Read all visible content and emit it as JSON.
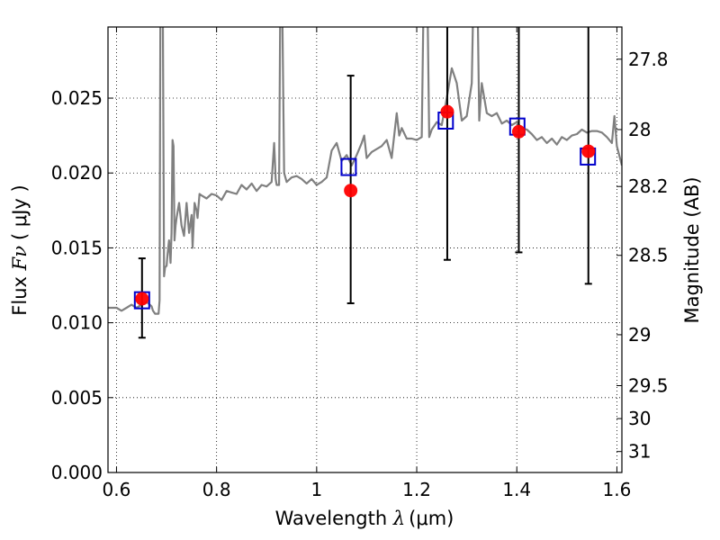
{
  "chart_data": {
    "type": "line",
    "xlabel_prefix": "Wavelength ",
    "xlabel_symbol": "λ",
    "xlabel_units": "(μm)",
    "ylabel_prefix": "Flux ",
    "ylabel_symbol": "Fν",
    "ylabel_units": "( μJy )",
    "y2label": "Magnitude (AB)",
    "xlim": [
      0.583,
      1.61
    ],
    "ylim": [
      0,
      0.02975
    ],
    "grid": true,
    "x_ticks": [
      {
        "value": 0.6,
        "label": "0.6"
      },
      {
        "value": 0.8,
        "label": "0.8"
      },
      {
        "value": 1.0,
        "label": "1"
      },
      {
        "value": 1.2,
        "label": "1.2"
      },
      {
        "value": 1.4,
        "label": "1.4"
      },
      {
        "value": 1.6,
        "label": "1.6"
      }
    ],
    "y_ticks": [
      {
        "value": 0.0,
        "label": "0.000"
      },
      {
        "value": 0.005,
        "label": "0.005"
      },
      {
        "value": 0.01,
        "label": "0.010"
      },
      {
        "value": 0.015,
        "label": "0.015"
      },
      {
        "value": 0.02,
        "label": "0.020"
      },
      {
        "value": 0.025,
        "label": "0.025"
      }
    ],
    "y2_ticks": [
      {
        "flux": 0.0276,
        "label": "27.8"
      },
      {
        "flux": 0.0229,
        "label": "28"
      },
      {
        "flux": 0.0191,
        "label": "28.2"
      },
      {
        "flux": 0.0145,
        "label": "28.5"
      },
      {
        "flux": 0.0092,
        "label": "29"
      },
      {
        "flux": 0.0058,
        "label": "29.5"
      },
      {
        "flux": 0.0036,
        "label": "30"
      },
      {
        "flux": 0.0014,
        "label": "31"
      }
    ],
    "spectrum": {
      "color": "#808080",
      "x": [
        0.583,
        0.6,
        0.61,
        0.62,
        0.63,
        0.64,
        0.65,
        0.66,
        0.67,
        0.673,
        0.677,
        0.68,
        0.684,
        0.686,
        0.688,
        0.692,
        0.695,
        0.697,
        0.7,
        0.702,
        0.705,
        0.708,
        0.71,
        0.712,
        0.714,
        0.716,
        0.718,
        0.72,
        0.725,
        0.73,
        0.735,
        0.74,
        0.745,
        0.75,
        0.752,
        0.756,
        0.76,
        0.762,
        0.766,
        0.77,
        0.78,
        0.79,
        0.8,
        0.81,
        0.82,
        0.83,
        0.84,
        0.85,
        0.86,
        0.87,
        0.88,
        0.89,
        0.9,
        0.91,
        0.915,
        0.918,
        0.92,
        0.925,
        0.928,
        0.93,
        0.935,
        0.94,
        0.95,
        0.96,
        0.97,
        0.98,
        0.99,
        1.0,
        1.01,
        1.02,
        1.03,
        1.04,
        1.05,
        1.06,
        1.07,
        1.08,
        1.09,
        1.095,
        1.1,
        1.11,
        1.12,
        1.13,
        1.14,
        1.15,
        1.16,
        1.165,
        1.17,
        1.18,
        1.19,
        1.2,
        1.21,
        1.215,
        1.22,
        1.225,
        1.23,
        1.24,
        1.25,
        1.26,
        1.27,
        1.28,
        1.29,
        1.3,
        1.31,
        1.315,
        1.32,
        1.325,
        1.33,
        1.34,
        1.35,
        1.36,
        1.37,
        1.38,
        1.39,
        1.4,
        1.41,
        1.42,
        1.43,
        1.44,
        1.45,
        1.46,
        1.47,
        1.48,
        1.49,
        1.5,
        1.51,
        1.52,
        1.53,
        1.54,
        1.55,
        1.56,
        1.57,
        1.58,
        1.59,
        1.595,
        1.6,
        1.61
      ],
      "y": [
        0.011,
        0.011,
        0.0108,
        0.011,
        0.0112,
        0.011,
        0.0112,
        0.0114,
        0.0111,
        0.0108,
        0.0106,
        0.0106,
        0.0106,
        0.0115,
        0.035,
        0.035,
        0.0131,
        0.0137,
        0.0138,
        0.0146,
        0.0155,
        0.014,
        0.016,
        0.0222,
        0.0218,
        0.0155,
        0.0165,
        0.017,
        0.018,
        0.0165,
        0.0158,
        0.018,
        0.016,
        0.0172,
        0.015,
        0.018,
        0.0175,
        0.017,
        0.0186,
        0.0185,
        0.0183,
        0.0186,
        0.0185,
        0.0182,
        0.0188,
        0.0187,
        0.0186,
        0.0192,
        0.0189,
        0.0193,
        0.0188,
        0.0192,
        0.0191,
        0.0194,
        0.022,
        0.0196,
        0.0192,
        0.0192,
        0.035,
        0.035,
        0.02,
        0.0194,
        0.0197,
        0.0198,
        0.0196,
        0.0193,
        0.0196,
        0.0192,
        0.0194,
        0.0197,
        0.0215,
        0.022,
        0.0208,
        0.0212,
        0.0205,
        0.0212,
        0.022,
        0.0225,
        0.021,
        0.0214,
        0.0216,
        0.0218,
        0.0222,
        0.021,
        0.024,
        0.0225,
        0.023,
        0.0223,
        0.0223,
        0.0222,
        0.0224,
        0.035,
        0.035,
        0.0224,
        0.0229,
        0.0234,
        0.0232,
        0.025,
        0.027,
        0.026,
        0.0235,
        0.0238,
        0.026,
        0.035,
        0.035,
        0.0235,
        0.026,
        0.024,
        0.0238,
        0.024,
        0.0233,
        0.0235,
        0.0232,
        0.0234,
        0.023,
        0.0229,
        0.0226,
        0.0222,
        0.0224,
        0.022,
        0.0223,
        0.0219,
        0.0224,
        0.0222,
        0.0225,
        0.0226,
        0.0229,
        0.0227,
        0.0228,
        0.0228,
        0.0227,
        0.0224,
        0.022,
        0.0238,
        0.0218,
        0.0205
      ]
    },
    "observed": {
      "color": "#ff0000",
      "points": [
        {
          "x": 0.651,
          "y": 0.0116,
          "yerr_low": 0.009,
          "yerr_high": 0.0143
        },
        {
          "x": 1.068,
          "y": 0.01883,
          "yerr_low": 0.0113,
          "yerr_high": 0.0265
        },
        {
          "x": 1.261,
          "y": 0.02409,
          "yerr_low": 0.0142,
          "yerr_high": 0.035
        },
        {
          "x": 1.404,
          "y": 0.02276,
          "yerr_low": 0.0147,
          "yerr_high": 0.035
        },
        {
          "x": 1.543,
          "y": 0.02145,
          "yerr_low": 0.0126,
          "yerr_high": 0.035
        }
      ]
    },
    "model": {
      "color": "#0000cc",
      "points": [
        {
          "x": 0.651,
          "y": 0.0115
        },
        {
          "x": 1.064,
          "y": 0.0204
        },
        {
          "x": 1.258,
          "y": 0.0235
        },
        {
          "x": 1.401,
          "y": 0.0231
        },
        {
          "x": 1.542,
          "y": 0.0211
        }
      ]
    }
  }
}
